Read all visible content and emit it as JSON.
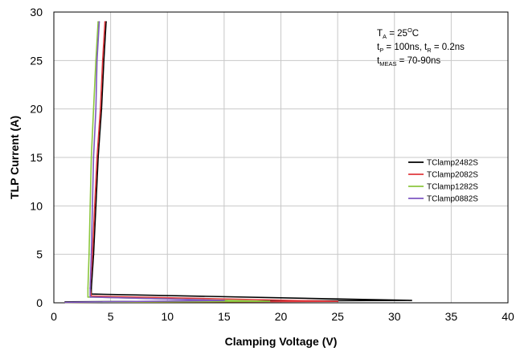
{
  "chart_data": {
    "type": "line",
    "title": "",
    "xlabel": "Clamping Voltage (V)",
    "ylabel": "TLP Current (A)",
    "xlim": [
      0,
      40
    ],
    "ylim": [
      0,
      30
    ],
    "x_ticks": [
      "0",
      "5",
      "10",
      "15",
      "20",
      "25",
      "30",
      "35",
      "40"
    ],
    "y_ticks": [
      "0",
      "5",
      "10",
      "15",
      "20",
      "25",
      "30"
    ],
    "grid": true,
    "legend_position": "right",
    "annotations": [
      {
        "parts": [
          [
            "T",
            "n"
          ],
          [
            "A",
            "sub"
          ],
          [
            " = 25",
            "n"
          ],
          [
            "O",
            "sup"
          ],
          [
            "C",
            "n"
          ]
        ]
      },
      {
        "parts": [
          [
            "t",
            "n"
          ],
          [
            "P",
            "sub"
          ],
          [
            " = 100ns, t",
            "n"
          ],
          [
            "R",
            "sub"
          ],
          [
            " = 0.2ns",
            "n"
          ]
        ]
      },
      {
        "parts": [
          [
            "t",
            "n"
          ],
          [
            "MEAS",
            "sub"
          ],
          [
            " = 70-90ns",
            "n"
          ]
        ]
      }
    ],
    "series": [
      {
        "name": "TClamp2482S",
        "color": "#000000",
        "points": [
          [
            1,
            0.1
          ],
          [
            31.5,
            0.25
          ],
          [
            3.3,
            0.9
          ],
          [
            3.3,
            1.5
          ],
          [
            3.5,
            5
          ],
          [
            3.7,
            10
          ],
          [
            3.9,
            15
          ],
          [
            4.2,
            20
          ],
          [
            4.4,
            25
          ],
          [
            4.6,
            29
          ]
        ]
      },
      {
        "name": "TClamp2082S",
        "color": "#e0393e",
        "points": [
          [
            1,
            0.05
          ],
          [
            25,
            0.15
          ],
          [
            3.3,
            0.7
          ],
          [
            3.2,
            1.5
          ],
          [
            3.4,
            5
          ],
          [
            3.6,
            10
          ],
          [
            3.8,
            15
          ],
          [
            4.1,
            20
          ],
          [
            4.3,
            25
          ],
          [
            4.5,
            29
          ]
        ]
      },
      {
        "name": "TClamp1282S",
        "color": "#8cc63e",
        "points": [
          [
            1,
            0.05
          ],
          [
            19,
            0.15
          ],
          [
            3.0,
            0.6
          ],
          [
            3.0,
            1.5
          ],
          [
            3.1,
            5
          ],
          [
            3.2,
            10
          ],
          [
            3.3,
            15
          ],
          [
            3.5,
            20
          ],
          [
            3.7,
            25
          ],
          [
            3.9,
            29
          ]
        ]
      },
      {
        "name": "TClamp0882S",
        "color": "#7e57c2",
        "points": [
          [
            1,
            0.05
          ],
          [
            15,
            0.25
          ],
          [
            3.2,
            0.6
          ],
          [
            3.2,
            1.5
          ],
          [
            3.3,
            5
          ],
          [
            3.4,
            10
          ],
          [
            3.5,
            15
          ],
          [
            3.7,
            20
          ],
          [
            3.8,
            25
          ],
          [
            4.0,
            29
          ]
        ]
      }
    ]
  }
}
